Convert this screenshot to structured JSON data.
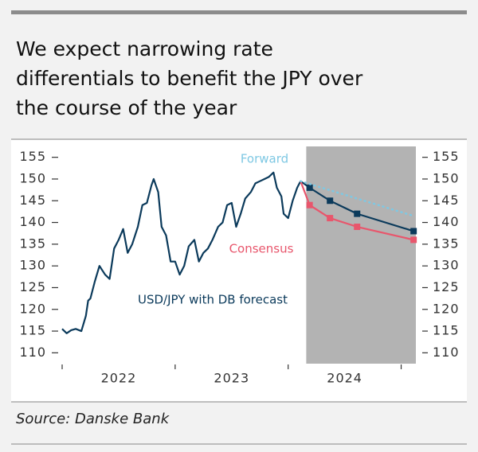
{
  "chart_data": {
    "type": "line",
    "title_lines": [
      "We expect narrowing rate",
      "differentials to benefit the JPY over",
      "the course of the year"
    ],
    "source": "Source: Danske Bank",
    "xlim": [
      2022,
      2025.13
    ],
    "xticks": [
      2022,
      2023,
      2024,
      2025
    ],
    "xtick_labels": [
      {
        "value": 2022.5,
        "label": "2022"
      },
      {
        "value": 2023.5,
        "label": "2023"
      },
      {
        "value": 2024.5,
        "label": "2024"
      }
    ],
    "ylim": [
      107.5,
      157.5
    ],
    "yticks": [
      110,
      115,
      120,
      125,
      130,
      135,
      140,
      145,
      150,
      155
    ],
    "y2lim": [
      107.5,
      157.5
    ],
    "y2ticks": [
      110,
      115,
      120,
      125,
      130,
      135,
      140,
      145,
      150,
      155
    ],
    "forecast_region": [
      2024.16,
      2025.13
    ],
    "forecast_region_color": "#b3b3b3",
    "series": [
      {
        "name": "USD/JPY with DB forecast",
        "color": "#0b3a5b",
        "style": "solid",
        "markers": false,
        "x": [
          2022.0,
          2022.04,
          2022.08,
          2022.12,
          2022.17,
          2022.21,
          2022.23,
          2022.25,
          2022.29,
          2022.33,
          2022.38,
          2022.42,
          2022.46,
          2022.5,
          2022.54,
          2022.58,
          2022.62,
          2022.67,
          2022.71,
          2022.75,
          2022.79,
          2022.81,
          2022.85,
          2022.88,
          2022.92,
          2022.96,
          2023.0,
          2023.04,
          2023.08,
          2023.12,
          2023.17,
          2023.21,
          2023.25,
          2023.29,
          2023.33,
          2023.38,
          2023.42,
          2023.46,
          2023.5,
          2023.54,
          2023.58,
          2023.62,
          2023.67,
          2023.71,
          2023.75,
          2023.79,
          2023.83,
          2023.87,
          2023.9,
          2023.94,
          2023.96,
          2024.0,
          2024.04,
          2024.08,
          2024.11
        ],
        "values": [
          115.5,
          114.5,
          115.2,
          115.5,
          115.0,
          118.5,
          122,
          122.5,
          126.5,
          130,
          128,
          127,
          134,
          136,
          138.5,
          133,
          135,
          139,
          144,
          144.5,
          148.5,
          150,
          147,
          139,
          137,
          131,
          131,
          128,
          130,
          134.5,
          136,
          131,
          133,
          134,
          136,
          139,
          140,
          144,
          144.5,
          139,
          142,
          145.5,
          147,
          149,
          149.5,
          150,
          150.5,
          151.5,
          148,
          146,
          142,
          141,
          145,
          148,
          149.5
        ]
      },
      {
        "color": "#0b3a5b",
        "style": "solid",
        "markers": true,
        "x": [
          2024.11,
          2024.19,
          2024.37,
          2024.61,
          2025.11
        ],
        "values": [
          149.5,
          148,
          145,
          142,
          138
        ]
      },
      {
        "name": "Consensus",
        "color": "#e8566c",
        "style": "solid",
        "markers": true,
        "x": [
          2024.11,
          2024.19,
          2024.37,
          2024.61,
          2025.11
        ],
        "values": [
          149.5,
          144,
          141,
          139,
          136
        ]
      },
      {
        "name": "Forward",
        "color": "#7ec8e3",
        "style": "dotted",
        "markers": false,
        "x": [
          2024.11,
          2025.11
        ],
        "values": [
          149.5,
          141.5
        ]
      }
    ]
  }
}
